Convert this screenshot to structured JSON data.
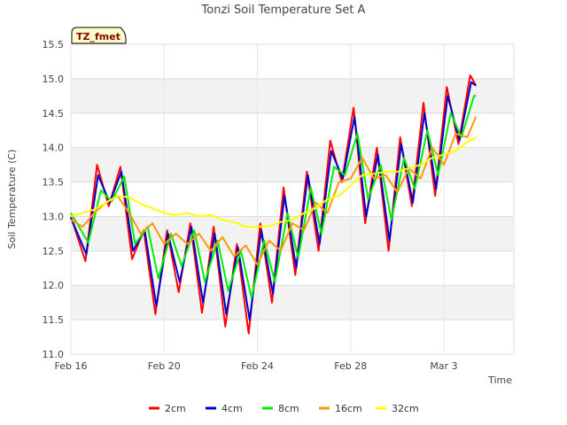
{
  "chart_data": {
    "type": "line",
    "title": "Tonzi Soil Temperature Set A",
    "xlabel": "Time",
    "ylabel": "Soil Temperature (C)",
    "badge": "TZ_fmet",
    "x_start": "2024-02-16",
    "x_end": "2024-03-06",
    "xlim": [
      "2024-02-16",
      "2024-03-06"
    ],
    "ylim": [
      11.0,
      15.5
    ],
    "x_ticks": [
      {
        "date": "2024-02-16",
        "label": "Feb 16"
      },
      {
        "date": "2024-02-20",
        "label": "Feb 20"
      },
      {
        "date": "2024-02-24",
        "label": "Feb 24"
      },
      {
        "date": "2024-02-28",
        "label": "Feb 28"
      },
      {
        "date": "2024-03-03",
        "label": "Mar 3"
      }
    ],
    "y_ticks": [
      "11.0",
      "11.5",
      "12.0",
      "12.5",
      "13.0",
      "13.5",
      "14.0",
      "14.5",
      "15.0",
      "15.5"
    ],
    "grid": true,
    "legend_position": "bottom",
    "series": [
      {
        "name": "2cm",
        "color": "#ff0000",
        "points": [
          [
            "2024-02-16 00:00",
            13.0
          ],
          [
            "2024-02-16 15:00",
            12.35
          ],
          [
            "2024-02-17 03:00",
            13.75
          ],
          [
            "2024-02-17 15:00",
            13.15
          ],
          [
            "2024-02-18 03:00",
            13.72
          ],
          [
            "2024-02-18 15:00",
            12.38
          ],
          [
            "2024-02-19 03:00",
            12.8
          ],
          [
            "2024-02-19 15:00",
            11.58
          ],
          [
            "2024-02-20 03:00",
            12.8
          ],
          [
            "2024-02-20 15:00",
            11.9
          ],
          [
            "2024-02-21 03:00",
            12.9
          ],
          [
            "2024-02-21 15:00",
            11.6
          ],
          [
            "2024-02-22 03:00",
            12.85
          ],
          [
            "2024-02-22 15:00",
            11.4
          ],
          [
            "2024-02-23 03:00",
            12.6
          ],
          [
            "2024-02-23 15:00",
            11.3
          ],
          [
            "2024-02-24 03:00",
            12.9
          ],
          [
            "2024-02-24 15:00",
            11.75
          ],
          [
            "2024-02-25 03:00",
            13.42
          ],
          [
            "2024-02-25 15:00",
            12.15
          ],
          [
            "2024-02-26 03:00",
            13.65
          ],
          [
            "2024-02-26 15:00",
            12.5
          ],
          [
            "2024-02-27 03:00",
            14.1
          ],
          [
            "2024-02-27 15:00",
            13.5
          ],
          [
            "2024-02-28 03:00",
            14.58
          ],
          [
            "2024-02-28 15:00",
            12.9
          ],
          [
            "2024-02-29 03:00",
            14.0
          ],
          [
            "2024-02-29 15:00",
            12.5
          ],
          [
            "2024-03-01 03:00",
            14.15
          ],
          [
            "2024-03-01 15:00",
            13.15
          ],
          [
            "2024-03-02 03:00",
            14.65
          ],
          [
            "2024-03-02 15:00",
            13.3
          ],
          [
            "2024-03-03 03:00",
            14.88
          ],
          [
            "2024-03-03 15:00",
            14.05
          ],
          [
            "2024-03-04 03:00",
            15.05
          ],
          [
            "2024-03-04 09:00",
            14.9
          ]
        ]
      },
      {
        "name": "4cm",
        "color": "#0000cc",
        "points": [
          [
            "2024-02-16 00:00",
            12.98
          ],
          [
            "2024-02-16 16:00",
            12.45
          ],
          [
            "2024-02-17 04:00",
            13.6
          ],
          [
            "2024-02-17 16:00",
            13.2
          ],
          [
            "2024-02-18 04:00",
            13.65
          ],
          [
            "2024-02-18 16:00",
            12.5
          ],
          [
            "2024-02-19 04:00",
            12.8
          ],
          [
            "2024-02-19 16:00",
            11.7
          ],
          [
            "2024-02-20 04:00",
            12.75
          ],
          [
            "2024-02-20 16:00",
            12.05
          ],
          [
            "2024-02-21 04:00",
            12.85
          ],
          [
            "2024-02-21 16:00",
            11.75
          ],
          [
            "2024-02-22 04:00",
            12.75
          ],
          [
            "2024-02-22 16:00",
            11.58
          ],
          [
            "2024-02-23 04:00",
            12.55
          ],
          [
            "2024-02-23 16:00",
            11.5
          ],
          [
            "2024-02-24 04:00",
            12.8
          ],
          [
            "2024-02-24 16:00",
            11.88
          ],
          [
            "2024-02-25 04:00",
            13.3
          ],
          [
            "2024-02-25 16:00",
            12.25
          ],
          [
            "2024-02-26 04:00",
            13.6
          ],
          [
            "2024-02-26 16:00",
            12.6
          ],
          [
            "2024-02-27 04:00",
            13.95
          ],
          [
            "2024-02-27 16:00",
            13.55
          ],
          [
            "2024-02-28 04:00",
            14.45
          ],
          [
            "2024-02-28 16:00",
            13.0
          ],
          [
            "2024-02-29 04:00",
            13.9
          ],
          [
            "2024-02-29 16:00",
            12.65
          ],
          [
            "2024-03-01 04:00",
            14.05
          ],
          [
            "2024-03-01 16:00",
            13.2
          ],
          [
            "2024-03-02 04:00",
            14.5
          ],
          [
            "2024-03-02 16:00",
            13.4
          ],
          [
            "2024-03-03 04:00",
            14.75
          ],
          [
            "2024-03-03 16:00",
            14.1
          ],
          [
            "2024-03-04 04:00",
            14.95
          ],
          [
            "2024-03-04 09:00",
            14.9
          ]
        ]
      },
      {
        "name": "8cm",
        "color": "#00ee00",
        "points": [
          [
            "2024-02-16 00:00",
            13.05
          ],
          [
            "2024-02-16 18:00",
            12.62
          ],
          [
            "2024-02-17 07:00",
            13.38
          ],
          [
            "2024-02-17 18:00",
            13.22
          ],
          [
            "2024-02-18 07:00",
            13.58
          ],
          [
            "2024-02-18 18:00",
            12.6
          ],
          [
            "2024-02-19 07:00",
            12.85
          ],
          [
            "2024-02-19 18:00",
            12.1
          ],
          [
            "2024-02-20 07:00",
            12.75
          ],
          [
            "2024-02-20 18:00",
            12.28
          ],
          [
            "2024-02-21 07:00",
            12.8
          ],
          [
            "2024-02-21 18:00",
            12.05
          ],
          [
            "2024-02-22 07:00",
            12.65
          ],
          [
            "2024-02-22 18:00",
            11.92
          ],
          [
            "2024-02-23 07:00",
            12.5
          ],
          [
            "2024-02-23 18:00",
            11.82
          ],
          [
            "2024-02-24 07:00",
            12.65
          ],
          [
            "2024-02-24 18:00",
            12.05
          ],
          [
            "2024-02-25 07:00",
            13.05
          ],
          [
            "2024-02-25 18:00",
            12.4
          ],
          [
            "2024-02-26 07:00",
            13.42
          ],
          [
            "2024-02-26 18:00",
            12.75
          ],
          [
            "2024-02-27 07:00",
            13.72
          ],
          [
            "2024-02-27 18:00",
            13.6
          ],
          [
            "2024-02-28 07:00",
            14.2
          ],
          [
            "2024-02-28 18:00",
            13.25
          ],
          [
            "2024-02-29 07:00",
            13.75
          ],
          [
            "2024-02-29 18:00",
            12.95
          ],
          [
            "2024-03-01 07:00",
            13.85
          ],
          [
            "2024-03-01 18:00",
            13.4
          ],
          [
            "2024-03-02 07:00",
            14.25
          ],
          [
            "2024-03-02 18:00",
            13.6
          ],
          [
            "2024-03-03 07:00",
            14.5
          ],
          [
            "2024-03-03 18:00",
            14.15
          ],
          [
            "2024-03-04 07:00",
            14.75
          ],
          [
            "2024-03-04 09:00",
            14.75
          ]
        ]
      },
      {
        "name": "16cm",
        "color": "#ff9900",
        "points": [
          [
            "2024-02-16 00:00",
            12.95
          ],
          [
            "2024-02-16 12:00",
            12.85
          ],
          [
            "2024-02-17 00:00",
            13.05
          ],
          [
            "2024-02-17 12:00",
            13.2
          ],
          [
            "2024-02-18 00:00",
            13.3
          ],
          [
            "2024-02-18 12:00",
            13.05
          ],
          [
            "2024-02-19 00:00",
            12.75
          ],
          [
            "2024-02-19 12:00",
            12.9
          ],
          [
            "2024-02-20 00:00",
            12.6
          ],
          [
            "2024-02-20 12:00",
            12.75
          ],
          [
            "2024-02-21 00:00",
            12.6
          ],
          [
            "2024-02-21 12:00",
            12.75
          ],
          [
            "2024-02-22 00:00",
            12.5
          ],
          [
            "2024-02-22 12:00",
            12.7
          ],
          [
            "2024-02-23 00:00",
            12.42
          ],
          [
            "2024-02-23 12:00",
            12.58
          ],
          [
            "2024-02-24 00:00",
            12.3
          ],
          [
            "2024-02-24 12:00",
            12.65
          ],
          [
            "2024-02-25 00:00",
            12.5
          ],
          [
            "2024-02-25 12:00",
            12.9
          ],
          [
            "2024-02-26 00:00",
            12.8
          ],
          [
            "2024-02-26 12:00",
            13.2
          ],
          [
            "2024-02-27 00:00",
            13.05
          ],
          [
            "2024-02-27 12:00",
            13.5
          ],
          [
            "2024-02-28 00:00",
            13.55
          ],
          [
            "2024-02-28 12:00",
            13.85
          ],
          [
            "2024-02-29 00:00",
            13.55
          ],
          [
            "2024-02-29 12:00",
            13.6
          ],
          [
            "2024-03-01 00:00",
            13.35
          ],
          [
            "2024-03-01 12:00",
            13.7
          ],
          [
            "2024-03-02 00:00",
            13.55
          ],
          [
            "2024-03-02 12:00",
            14.0
          ],
          [
            "2024-03-03 00:00",
            13.75
          ],
          [
            "2024-03-03 12:00",
            14.2
          ],
          [
            "2024-03-04 00:00",
            14.15
          ],
          [
            "2024-03-04 09:00",
            14.45
          ]
        ]
      },
      {
        "name": "32cm",
        "color": "#ffff00",
        "points": [
          [
            "2024-02-16 00:00",
            13.0
          ],
          [
            "2024-02-17 00:00",
            13.1
          ],
          [
            "2024-02-17 12:00",
            13.2
          ],
          [
            "2024-02-18 00:00",
            13.3
          ],
          [
            "2024-02-18 12:00",
            13.28
          ],
          [
            "2024-02-19 00:00",
            13.18
          ],
          [
            "2024-02-19 12:00",
            13.12
          ],
          [
            "2024-02-20 00:00",
            13.05
          ],
          [
            "2024-02-20 12:00",
            13.02
          ],
          [
            "2024-02-21 00:00",
            13.05
          ],
          [
            "2024-02-21 12:00",
            13.0
          ],
          [
            "2024-02-22 00:00",
            13.02
          ],
          [
            "2024-02-22 12:00",
            12.95
          ],
          [
            "2024-02-23 00:00",
            12.92
          ],
          [
            "2024-02-23 12:00",
            12.85
          ],
          [
            "2024-02-24 00:00",
            12.85
          ],
          [
            "2024-02-24 12:00",
            12.86
          ],
          [
            "2024-02-25 00:00",
            12.92
          ],
          [
            "2024-02-25 12:00",
            12.95
          ],
          [
            "2024-02-26 00:00",
            13.05
          ],
          [
            "2024-02-26 12:00",
            13.12
          ],
          [
            "2024-02-27 00:00",
            13.25
          ],
          [
            "2024-02-27 12:00",
            13.3
          ],
          [
            "2024-02-28 00:00",
            13.45
          ],
          [
            "2024-02-28 12:00",
            13.6
          ],
          [
            "2024-02-29 00:00",
            13.62
          ],
          [
            "2024-02-29 12:00",
            13.65
          ],
          [
            "2024-03-01 00:00",
            13.65
          ],
          [
            "2024-03-01 12:00",
            13.7
          ],
          [
            "2024-03-02 00:00",
            13.75
          ],
          [
            "2024-03-02 12:00",
            13.85
          ],
          [
            "2024-03-03 00:00",
            13.9
          ],
          [
            "2024-03-03 12:00",
            13.95
          ],
          [
            "2024-03-04 00:00",
            14.08
          ],
          [
            "2024-03-04 09:00",
            14.15
          ]
        ]
      }
    ]
  }
}
